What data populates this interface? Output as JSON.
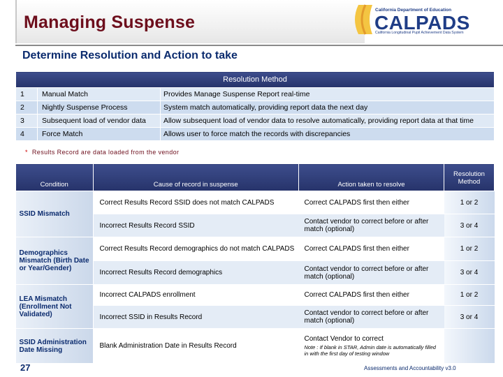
{
  "header": {
    "title": "Managing Suspense",
    "logo_dept": "California Department of Education",
    "logo_word": "CALPADS",
    "logo_sub": "California Longitudinal Pupil Achievement Data System"
  },
  "subtitle": "Determine Resolution and Action to take",
  "resolution_table": {
    "header": "Resolution Method",
    "rows": [
      {
        "num": "1",
        "method": "Manual Match",
        "desc": "Provides Manage Suspense Report real-time"
      },
      {
        "num": "2",
        "method": "Nightly Suspense Process",
        "desc": "System match automatically, providing report data the next day"
      },
      {
        "num": "3",
        "method": "Subsequent load of vendor data",
        "desc": "Allow subsequent load of vendor data to resolve automatically, providing report data at that time"
      },
      {
        "num": "4",
        "method": "Force Match",
        "desc": "Allows user to force match the records with discrepancies"
      }
    ]
  },
  "footnote": {
    "star": "*",
    "text": "Results Record are data loaded from the vendor"
  },
  "condition_table": {
    "headers": {
      "condition": "Condition",
      "cause": "Cause of record in suspense",
      "action": "Action taken to resolve",
      "resolution": "Resolution Method"
    },
    "groups": [
      {
        "condition": "SSID Mismatch",
        "rows": [
          {
            "cause": "Correct Results Record SSID does not match CALPADS",
            "action": "Correct CALPADS first then either",
            "resolution": "1 or 2"
          },
          {
            "cause": "Incorrect Results Record SSID",
            "action": "Contact vendor to correct before or after match (optional)",
            "resolution": "3 or 4"
          }
        ]
      },
      {
        "condition": "Demographics Mismatch (Birth Date or Year/Gender)",
        "rows": [
          {
            "cause": "Correct Results Record demographics do not match CALPADS",
            "action": "Correct CALPADS first then either",
            "resolution": "1 or 2"
          },
          {
            "cause": "Incorrect Results Record demographics",
            "action": "Contact vendor to correct before or after match (optional)",
            "resolution": "3 or 4"
          }
        ]
      },
      {
        "condition": "LEA Mismatch (Enrollment Not Validated)",
        "rows": [
          {
            "cause": "Incorrect CALPADS enrollment",
            "action": "Correct CALPADS first then either",
            "resolution": "1 or 2"
          },
          {
            "cause": "Incorrect SSID in Results Record",
            "action": "Contact vendor to correct before or after match (optional)",
            "resolution": "3 or 4"
          }
        ]
      },
      {
        "condition": "SSID Administration Date Missing",
        "rows": [
          {
            "cause": "Blank Administration Date in Results Record",
            "action": "Contact Vendor to correct",
            "note": "Note : If blank in STAR, Admin date is automatically filled in with the first day of testing window",
            "resolution": ""
          }
        ]
      }
    ]
  },
  "footer": {
    "page_number": "27",
    "text": "Assessments and Accountability v3.0"
  },
  "colors": {
    "title": "#6d0e1c",
    "heading_blue": "#0b2b6e",
    "table_header": "#26336a",
    "row_light": "#dfe9f5",
    "row_dark": "#cddcef"
  }
}
